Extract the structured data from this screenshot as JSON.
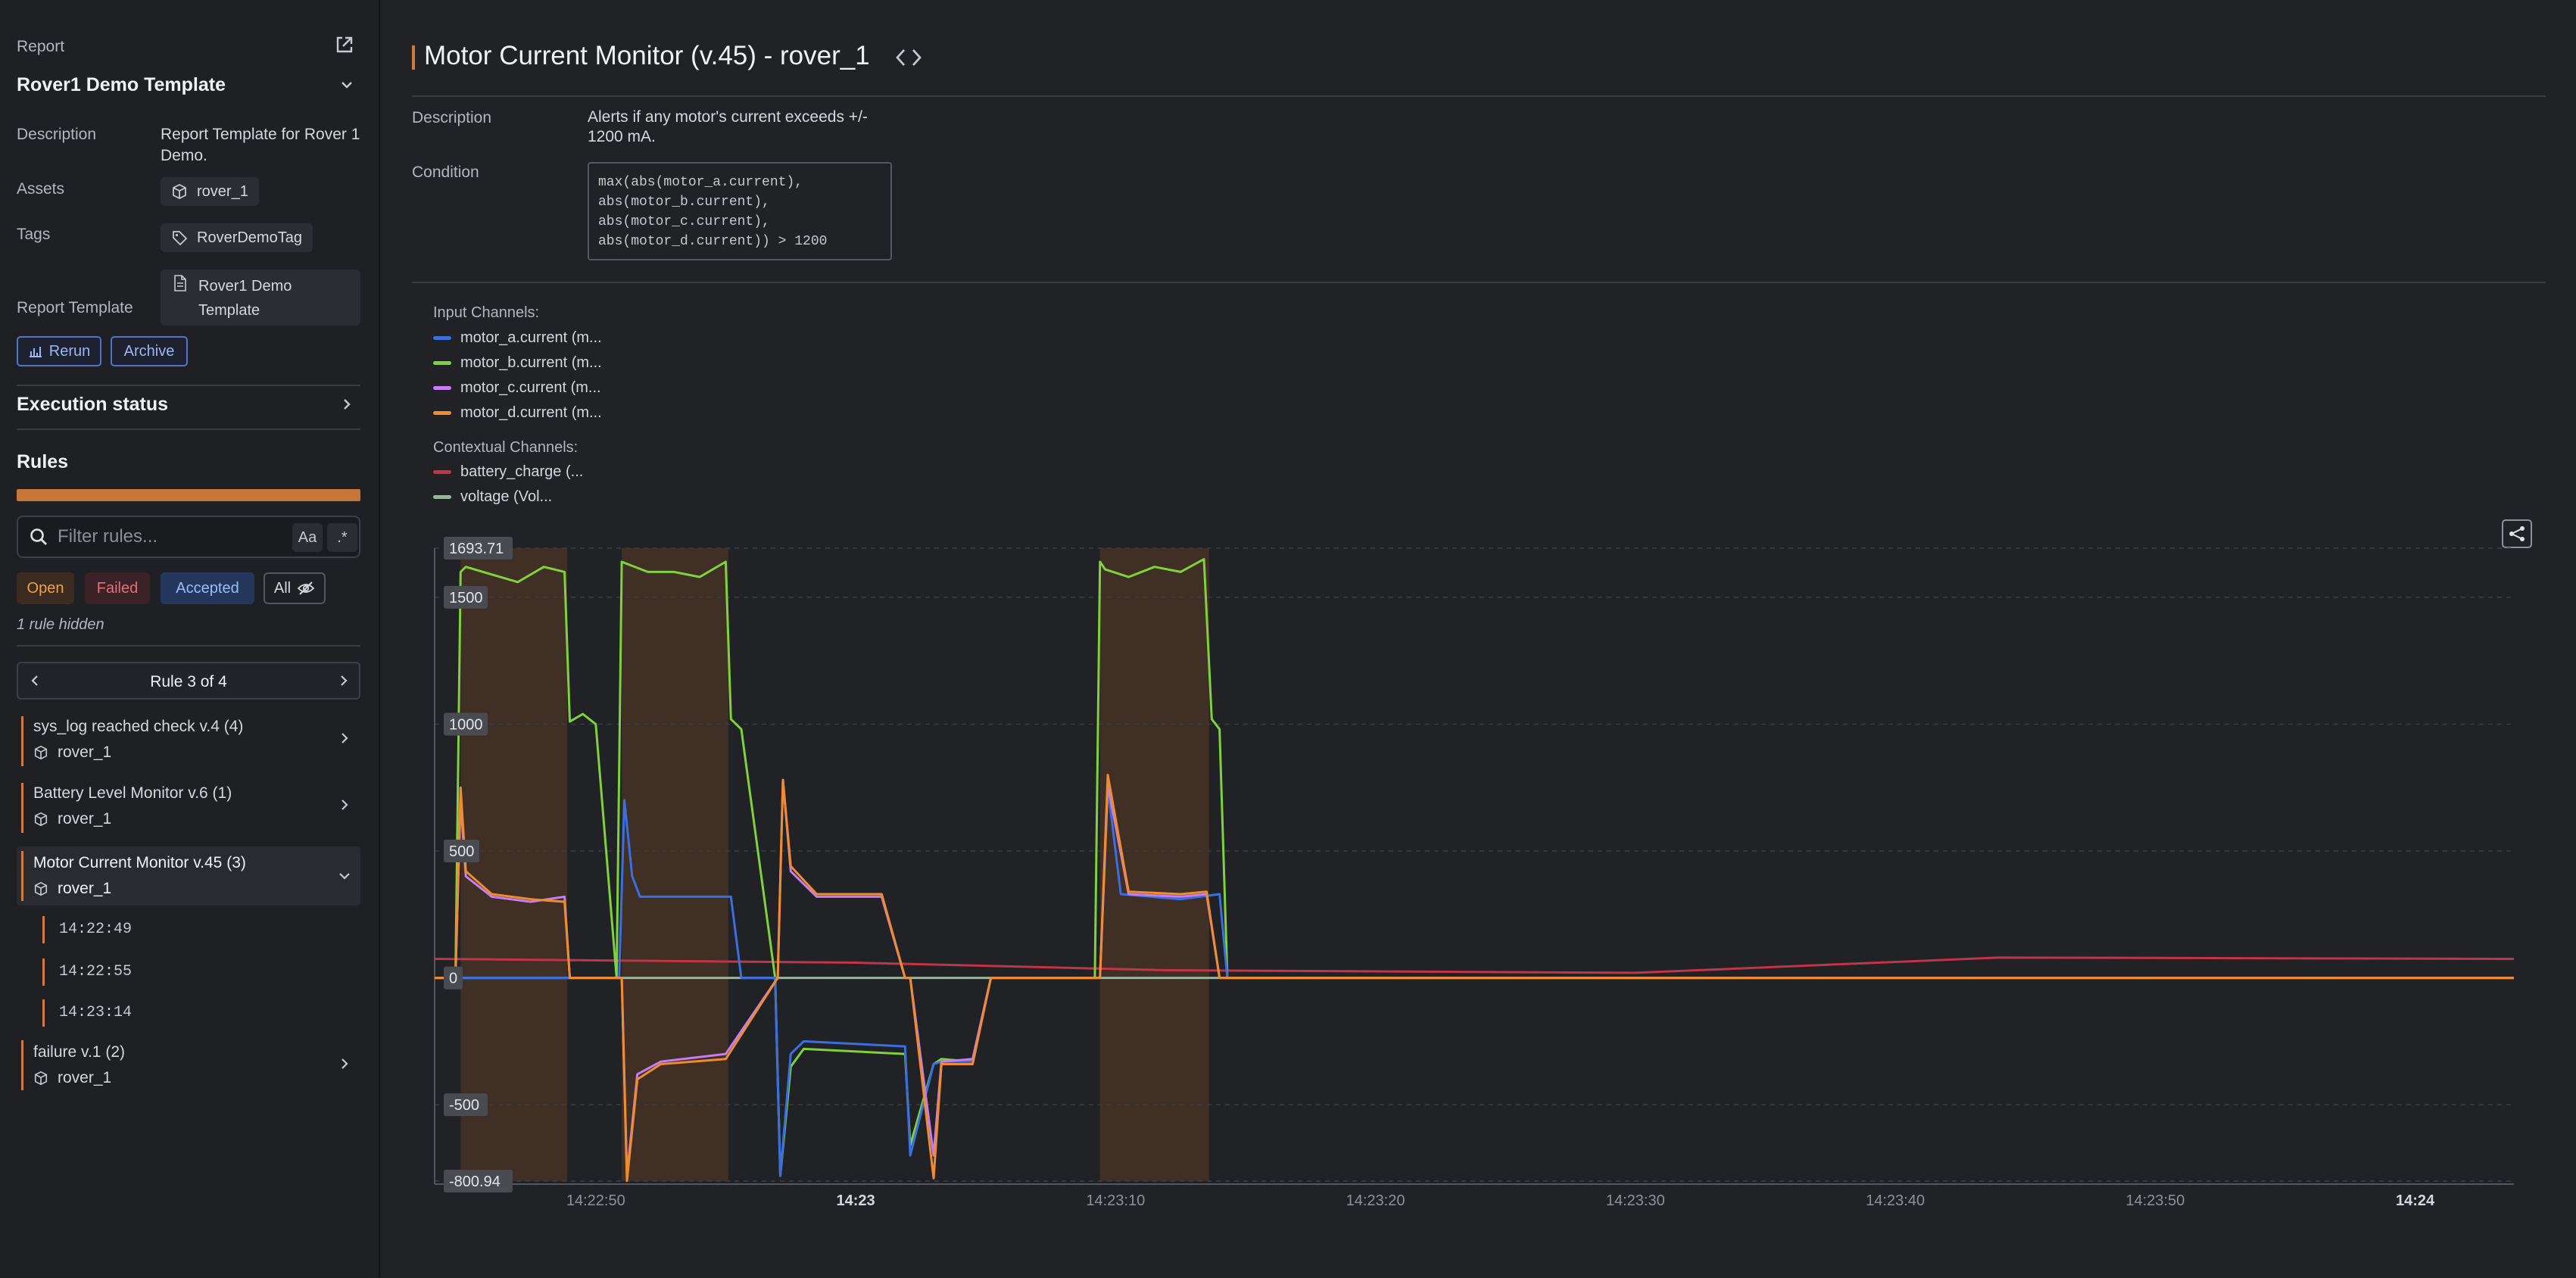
{
  "sidebar": {
    "report_label": "Report",
    "report_name": "Rover1 Demo Template",
    "description_label": "Description",
    "description_value": "Report Template for Rover 1 Demo.",
    "assets_label": "Assets",
    "asset": "rover_1",
    "tags_label": "Tags",
    "tag": "RoverDemoTag",
    "report_template_label": "Report Template",
    "report_template_value": "Rover1 Demo Template",
    "rerun_label": "Rerun",
    "archive_label": "Archive",
    "execution_status_label": "Execution status",
    "rules_label": "Rules",
    "filter_placeholder": "Filter rules...",
    "match_case": "Aa",
    "regex": ".*",
    "filters": {
      "open": "Open",
      "failed": "Failed",
      "accepted": "Accepted",
      "all": "All"
    },
    "hidden_note": "1 rule hidden",
    "pager_label": "Rule 3 of 4",
    "rules": [
      {
        "title": "sys_log reached check v.4 (4)",
        "asset": "rover_1"
      },
      {
        "title": "Battery Level Monitor v.6 (1)",
        "asset": "rover_1"
      },
      {
        "title": "Motor Current Monitor v.45 (3)",
        "asset": "rover_1"
      },
      {
        "title": "failure v.1 (2)",
        "asset": "rover_1"
      }
    ],
    "sub_items": [
      "14:22:49",
      "14:22:55",
      "14:23:14"
    ]
  },
  "main": {
    "title": "Motor Current Monitor (v.45) - rover_1",
    "description_label": "Description",
    "description_value": "Alerts if any motor's current exceeds +/- 1200 mA.",
    "condition_label": "Condition",
    "condition_lines": [
      "max(abs(motor_a.current),",
      "abs(motor_b.current),",
      "abs(motor_c.current),",
      "abs(motor_d.current)) > 1200"
    ]
  },
  "colors": {
    "accent": "#d17a3b",
    "motor_a": "#3b6fe0",
    "motor_b": "#7ed23b",
    "motor_c": "#c47ef0",
    "motor_d": "#f08c2e",
    "battery": "#c03548",
    "voltage": "#9ab39a",
    "shade": "#5a3a25"
  },
  "chart_data": {
    "type": "line",
    "input_channels_label": "Input Channels:",
    "contextual_channels_label": "Contextual Channels:",
    "legend": [
      {
        "name": "motor_a.current (m...",
        "color": "#3b6fe0"
      },
      {
        "name": "motor_b.current (m...",
        "color": "#7ed23b"
      },
      {
        "name": "motor_c.current (m...",
        "color": "#c47ef0"
      },
      {
        "name": "motor_d.current (m...",
        "color": "#f08c2e"
      }
    ],
    "context_legend": [
      {
        "name": "battery_charge (...",
        "color": "#c03548"
      },
      {
        "name": "voltage (Vol...",
        "color": "#9ab39a"
      }
    ],
    "ylim": [
      -800.94,
      1693.71
    ],
    "y_ticks": [
      "1693.71",
      "1500",
      "1000",
      "500",
      "0",
      "-500",
      "-800.94"
    ],
    "y_tick_values": [
      1693.71,
      1500,
      1000,
      500,
      0,
      -500,
      -800.94
    ],
    "x_ticks": [
      "14:22:50",
      "14:23",
      "14:23:10",
      "14:23:20",
      "14:23:30",
      "14:23:40",
      "14:23:50",
      "14:24"
    ],
    "x_tick_seconds": [
      50,
      60,
      70,
      80,
      90,
      100,
      110,
      120
    ],
    "xlim_seconds": [
      43.8,
      123.8
    ],
    "alert_windows_seconds": [
      [
        44.8,
        48.9
      ],
      [
        51.0,
        55.1
      ],
      [
        69.4,
        73.6
      ]
    ],
    "series": [
      {
        "name": "motor_a.current",
        "x": [
          43.8,
          50.8,
          50.9,
          51.1,
          51.4,
          51.7,
          52.0,
          53.0,
          55.2,
          55.6,
          56.9,
          57.1,
          57.5,
          58.0,
          61.9,
          62.1,
          63.0,
          63.3,
          64.5,
          65.2,
          66.6,
          67.2,
          69.2,
          69.4,
          69.7,
          70.2,
          72.5,
          74.0,
          74.3,
          123.8
        ],
        "y": [
          0,
          0,
          0,
          700,
          400,
          320,
          320,
          320,
          320,
          0,
          0,
          -780,
          -300,
          -250,
          -270,
          -700,
          -340,
          -330,
          -330,
          0,
          0,
          0,
          0,
          0,
          750,
          330,
          310,
          330,
          0,
          0
        ]
      },
      {
        "name": "motor_b.current",
        "x": [
          43.8,
          44.6,
          44.8,
          45.0,
          46.0,
          47.0,
          48.0,
          48.8,
          49.0,
          49.5,
          50.0,
          50.8,
          51.0,
          52.0,
          53.0,
          54.0,
          55.0,
          55.2,
          55.6,
          56.9,
          57.1,
          57.5,
          58.0,
          61.9,
          62.1,
          63.0,
          63.3,
          64.5,
          65.2,
          69.2,
          69.4,
          69.6,
          70.5,
          71.5,
          72.5,
          73.4,
          73.7,
          74.0,
          74.3,
          123.8
        ],
        "y": [
          0,
          0,
          1600,
          1620,
          1590,
          1560,
          1620,
          1600,
          1010,
          1040,
          1000,
          0,
          1640,
          1600,
          1600,
          1580,
          1640,
          1020,
          980,
          0,
          -780,
          -350,
          -280,
          -300,
          -660,
          -340,
          -320,
          -330,
          0,
          0,
          1640,
          1610,
          1580,
          1620,
          1600,
          1650,
          1020,
          980,
          0,
          0
        ]
      },
      {
        "name": "motor_c.current",
        "x": [
          43.8,
          44.6,
          44.8,
          45.0,
          46.0,
          47.5,
          48.8,
          49.0,
          51.0,
          51.2,
          51.6,
          52.5,
          55.0,
          57.0,
          57.2,
          57.5,
          58.5,
          61.0,
          61.9,
          62.1,
          63.0,
          63.3,
          64.5,
          65.2,
          69.2,
          69.4,
          69.7,
          70.5,
          72.5,
          73.5,
          74.0,
          74.3,
          123.8
        ],
        "y": [
          0,
          0,
          700,
          400,
          320,
          300,
          320,
          0,
          0,
          -780,
          -380,
          -330,
          -300,
          0,
          780,
          420,
          320,
          320,
          0,
          0,
          -700,
          -330,
          -320,
          0,
          0,
          0,
          760,
          330,
          320,
          330,
          0,
          0,
          0
        ]
      },
      {
        "name": "motor_d.current",
        "x": [
          43.8,
          44.6,
          44.8,
          45.0,
          46.0,
          47.5,
          48.8,
          49.0,
          51.0,
          51.2,
          51.6,
          52.5,
          55.0,
          57.0,
          57.2,
          57.5,
          58.5,
          61.0,
          61.9,
          62.1,
          63.0,
          63.3,
          64.5,
          65.2,
          69.2,
          69.4,
          69.7,
          70.5,
          72.5,
          73.5,
          74.0,
          74.3,
          123.8
        ],
        "y": [
          0,
          0,
          750,
          420,
          330,
          310,
          300,
          0,
          0,
          -800,
          -400,
          -340,
          -320,
          0,
          780,
          440,
          330,
          330,
          0,
          0,
          -790,
          -340,
          -340,
          0,
          0,
          0,
          800,
          340,
          330,
          340,
          0,
          0,
          0
        ]
      },
      {
        "name": "battery_charge",
        "x": [
          43.8,
          60.0,
          72.0,
          90.0,
          104.0,
          123.8
        ],
        "y": [
          75,
          60,
          30,
          20,
          80,
          75
        ]
      },
      {
        "name": "voltage",
        "x": [
          43.8,
          123.8
        ],
        "y": [
          0,
          0
        ]
      }
    ]
  }
}
